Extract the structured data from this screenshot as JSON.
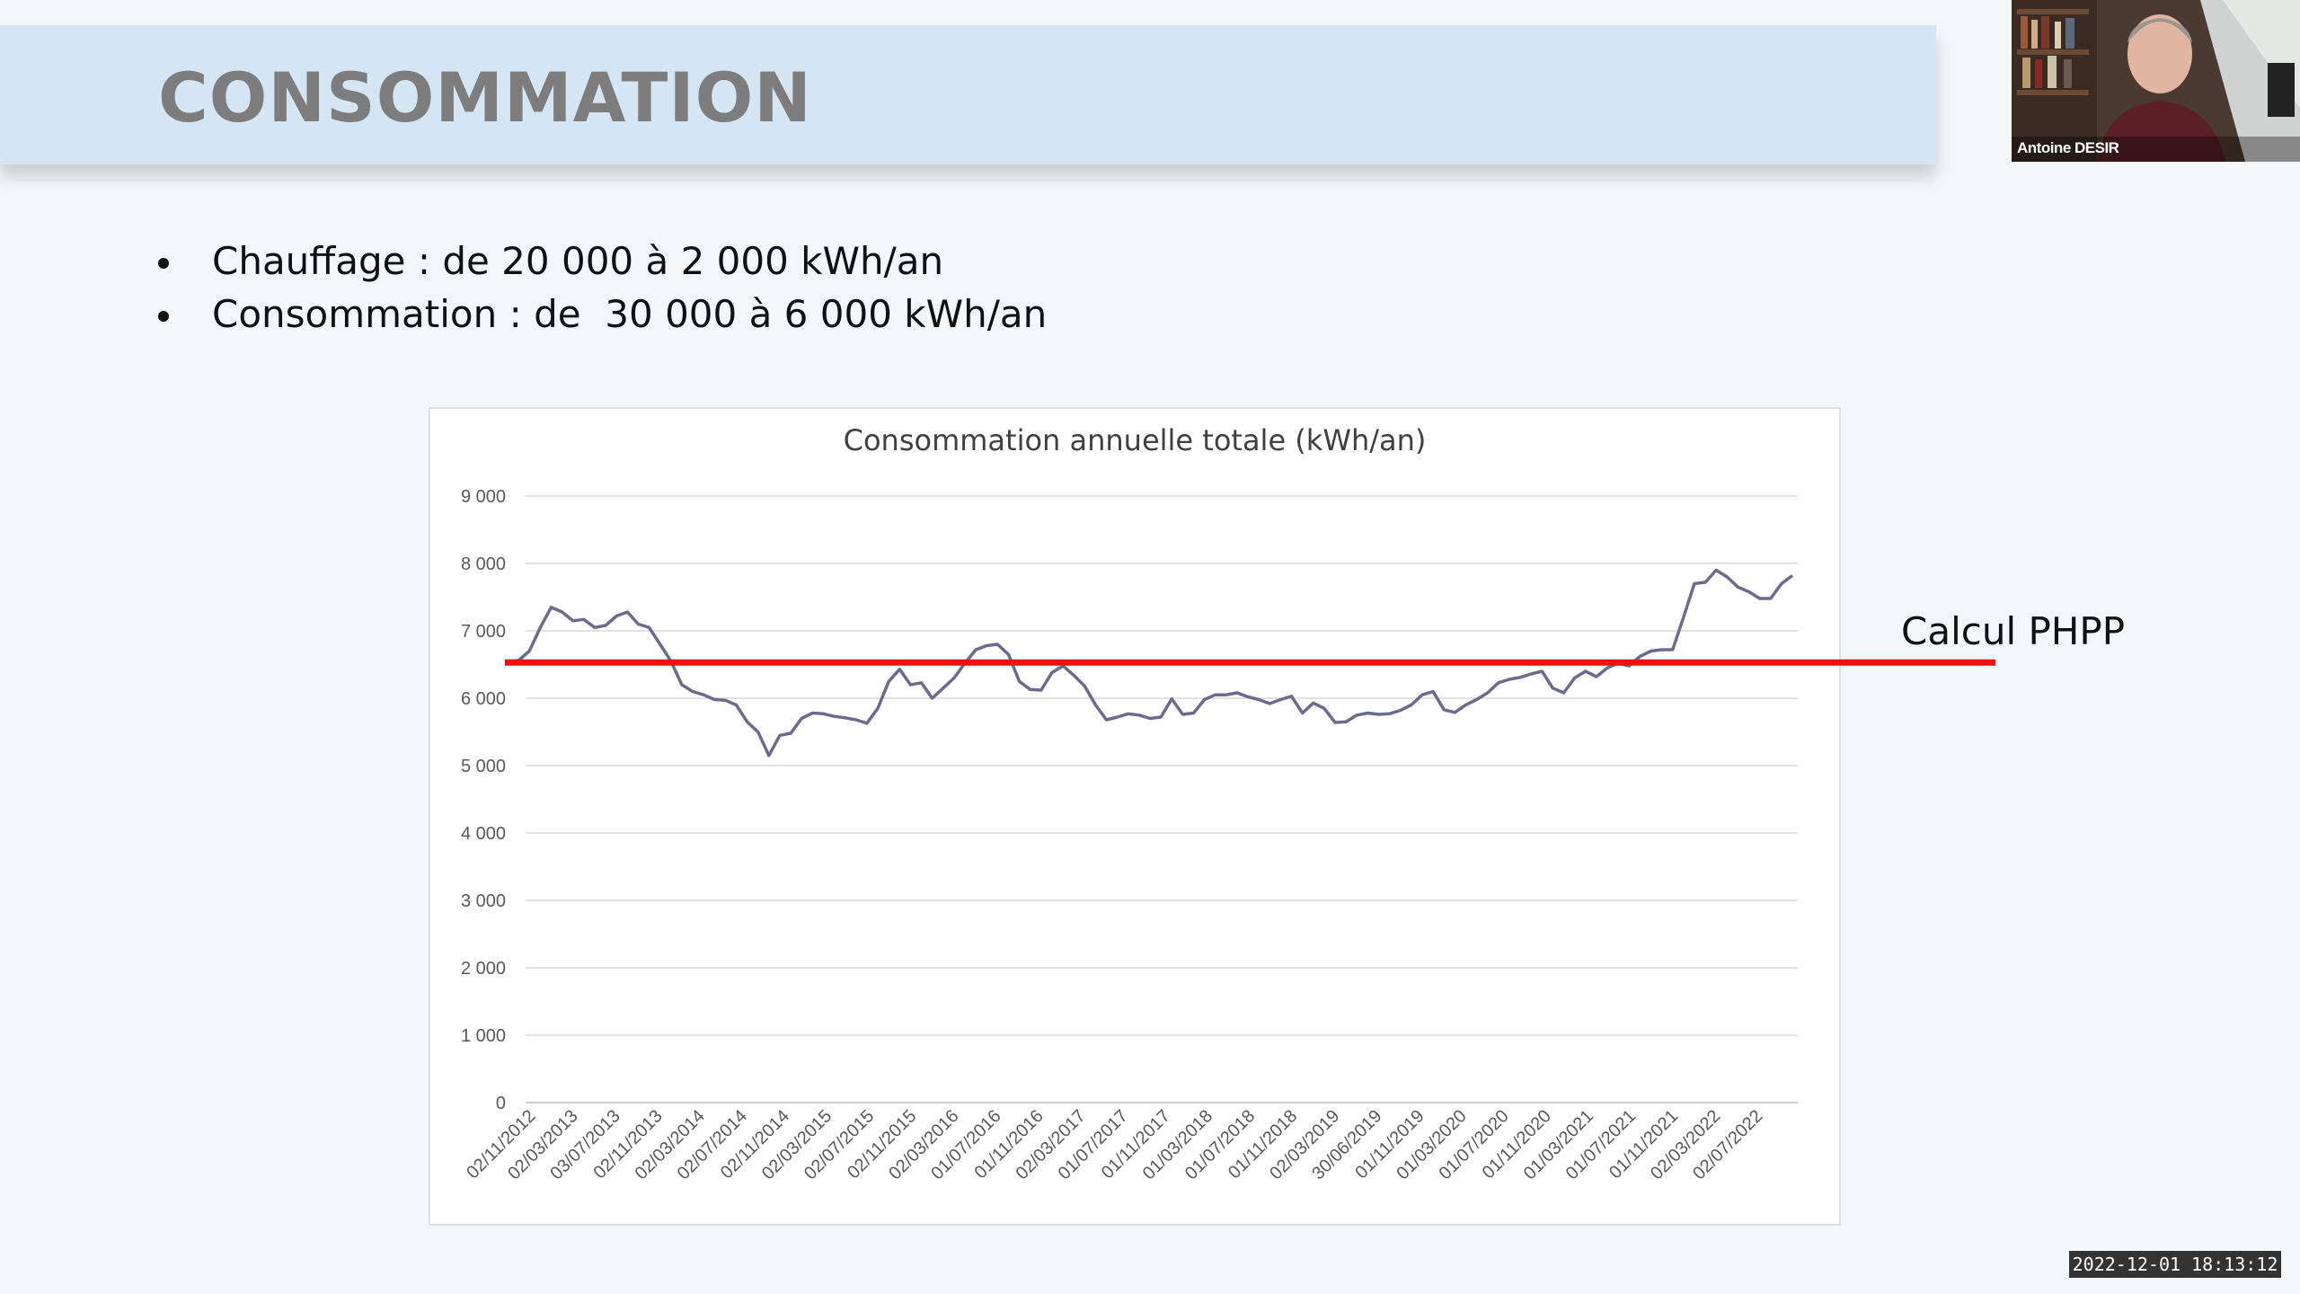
{
  "slide": {
    "title": "CONSOMMATION",
    "bullets": [
      "Chauffage : de 20 000 à 2 000 kWh/an",
      "Consommation : de  30 000 à 6 000 kWh/an"
    ]
  },
  "annotation": {
    "label": "Calcul PHPP",
    "value": 6530,
    "color": "#ee1111"
  },
  "webcam": {
    "participant_name": "Antoine DESIR"
  },
  "timestamp": "2022-12-01  18:13:12",
  "chart_data": {
    "type": "line",
    "title": "Consommation annuelle totale (kWh/an)",
    "xlabel": "",
    "ylabel": "",
    "ylim": [
      0,
      9000
    ],
    "yticks": [
      0,
      1000,
      2000,
      3000,
      4000,
      5000,
      6000,
      7000,
      8000,
      9000
    ],
    "ytick_labels": [
      "0",
      "1 000",
      "2 000",
      "3 000",
      "4 000",
      "5 000",
      "6 000",
      "7 000",
      "8 000",
      "9 000"
    ],
    "grid": true,
    "line_color": "#6b6b8f",
    "x_tick_labels": [
      "02/11/2012",
      "02/03/2013",
      "03/07/2013",
      "02/11/2013",
      "02/03/2014",
      "02/07/2014",
      "02/11/2014",
      "02/03/2015",
      "02/07/2015",
      "02/11/2015",
      "02/03/2016",
      "01/07/2016",
      "01/11/2016",
      "02/03/2017",
      "01/07/2017",
      "01/11/2017",
      "01/03/2018",
      "01/07/2018",
      "01/11/2018",
      "02/03/2019",
      "30/06/2019",
      "01/11/2019",
      "01/03/2020",
      "01/07/2020",
      "01/11/2020",
      "01/03/2021",
      "01/07/2021",
      "01/11/2021",
      "02/03/2022",
      "02/07/2022"
    ],
    "series": [
      {
        "name": "",
        "values": [
          6550,
          6560,
          6700,
          7050,
          7350,
          7280,
          7150,
          7170,
          7050,
          7080,
          7220,
          7280,
          7100,
          7050,
          6800,
          6550,
          6200,
          6100,
          6050,
          5980,
          5970,
          5900,
          5650,
          5500,
          5150,
          5450,
          5480,
          5700,
          5780,
          5770,
          5730,
          5710,
          5680,
          5630,
          5850,
          6250,
          6430,
          6200,
          6230,
          6000,
          6150,
          6300,
          6520,
          6720,
          6780,
          6800,
          6650,
          6250,
          6130,
          6120,
          6380,
          6480,
          6340,
          6180,
          5900,
          5680,
          5720,
          5770,
          5750,
          5700,
          5720,
          5990,
          5760,
          5780,
          5980,
          6050,
          6050,
          6080,
          6020,
          5980,
          5920,
          5980,
          6030,
          5780,
          5930,
          5850,
          5640,
          5650,
          5750,
          5780,
          5760,
          5770,
          5820,
          5900,
          6050,
          6100,
          5830,
          5790,
          5900,
          5980,
          6080,
          6230,
          6280,
          6310,
          6360,
          6400,
          6150,
          6080,
          6300,
          6400,
          6320,
          6450,
          6520,
          6480,
          6620,
          6700,
          6720,
          6720,
          7200,
          7700,
          7720,
          7900,
          7800,
          7650,
          7580,
          7480,
          7480,
          7700,
          7820
        ]
      }
    ]
  }
}
